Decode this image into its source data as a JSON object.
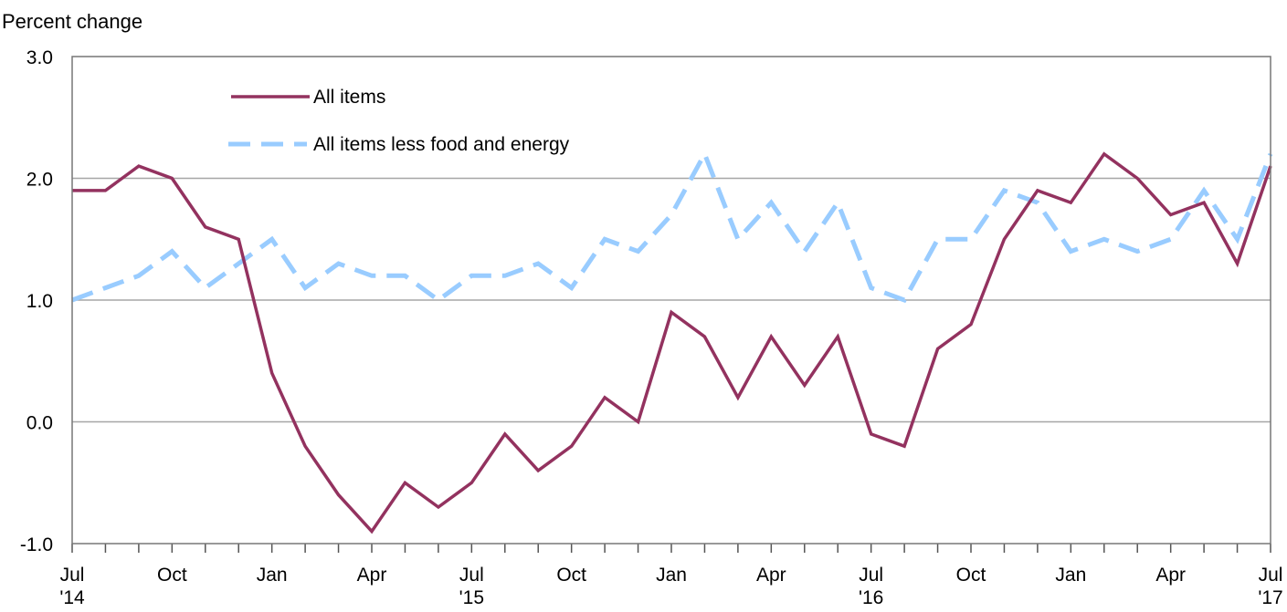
{
  "chart_data": {
    "type": "line",
    "title": "",
    "ylabel": "Percent change",
    "xlabel": "",
    "ylim": [
      -1.0,
      3.0
    ],
    "y_ticks": [
      "3.0",
      "2.0",
      "1.0",
      "0.0",
      "-1.0"
    ],
    "y_tick_values": [
      3.0,
      2.0,
      1.0,
      0.0,
      -1.0
    ],
    "grid": true,
    "legend_position": "top-left",
    "x": [
      "2014-07",
      "2014-08",
      "2014-09",
      "2014-10",
      "2014-11",
      "2014-12",
      "2015-01",
      "2015-02",
      "2015-03",
      "2015-04",
      "2015-05",
      "2015-06",
      "2015-07",
      "2015-08",
      "2015-09",
      "2015-10",
      "2015-11",
      "2015-12",
      "2016-01",
      "2016-02",
      "2016-03",
      "2016-04",
      "2016-05",
      "2016-06",
      "2016-07",
      "2016-08",
      "2016-09",
      "2016-10",
      "2016-11",
      "2016-12",
      "2017-01",
      "2017-02",
      "2017-03",
      "2017-04",
      "2017-05",
      "2017-06",
      "2017-07"
    ],
    "x_tick_labels": [
      {
        "month": "Jul",
        "year": "'14",
        "index": 0
      },
      {
        "month": "Oct",
        "year": "",
        "index": 3
      },
      {
        "month": "Jan",
        "year": "",
        "index": 6
      },
      {
        "month": "Apr",
        "year": "",
        "index": 9
      },
      {
        "month": "Jul",
        "year": "'15",
        "index": 12
      },
      {
        "month": "Oct",
        "year": "",
        "index": 15
      },
      {
        "month": "Jan",
        "year": "",
        "index": 18
      },
      {
        "month": "Apr",
        "year": "",
        "index": 21
      },
      {
        "month": "Jul",
        "year": "'16",
        "index": 24
      },
      {
        "month": "Oct",
        "year": "",
        "index": 27
      },
      {
        "month": "Jan",
        "year": "",
        "index": 30
      },
      {
        "month": "Apr",
        "year": "",
        "index": 33
      },
      {
        "month": "Jul",
        "year": "'17",
        "index": 36
      }
    ],
    "series": [
      {
        "name": "All items",
        "color": "#93325f",
        "style": "solid",
        "values": [
          1.9,
          1.9,
          2.1,
          2.0,
          1.6,
          1.5,
          0.4,
          -0.2,
          -0.6,
          -0.9,
          -0.5,
          -0.7,
          -0.5,
          -0.1,
          -0.4,
          -0.2,
          0.2,
          0.0,
          0.9,
          0.7,
          0.2,
          0.7,
          0.3,
          0.7,
          -0.1,
          -0.2,
          0.6,
          0.8,
          1.5,
          1.9,
          1.8,
          2.2,
          2.0,
          1.7,
          1.8,
          1.3,
          2.1
        ]
      },
      {
        "name": "All items less food and energy",
        "color": "#99ccff",
        "style": "dashed",
        "values": [
          1.0,
          1.1,
          1.2,
          1.4,
          1.1,
          1.3,
          1.5,
          1.1,
          1.3,
          1.2,
          1.2,
          1.0,
          1.2,
          1.2,
          1.3,
          1.1,
          1.5,
          1.4,
          1.7,
          2.2,
          1.5,
          1.8,
          1.4,
          1.8,
          1.1,
          1.0,
          1.5,
          1.5,
          1.9,
          1.8,
          1.4,
          1.5,
          1.4,
          1.5,
          1.9,
          1.5,
          2.2
        ]
      }
    ]
  }
}
